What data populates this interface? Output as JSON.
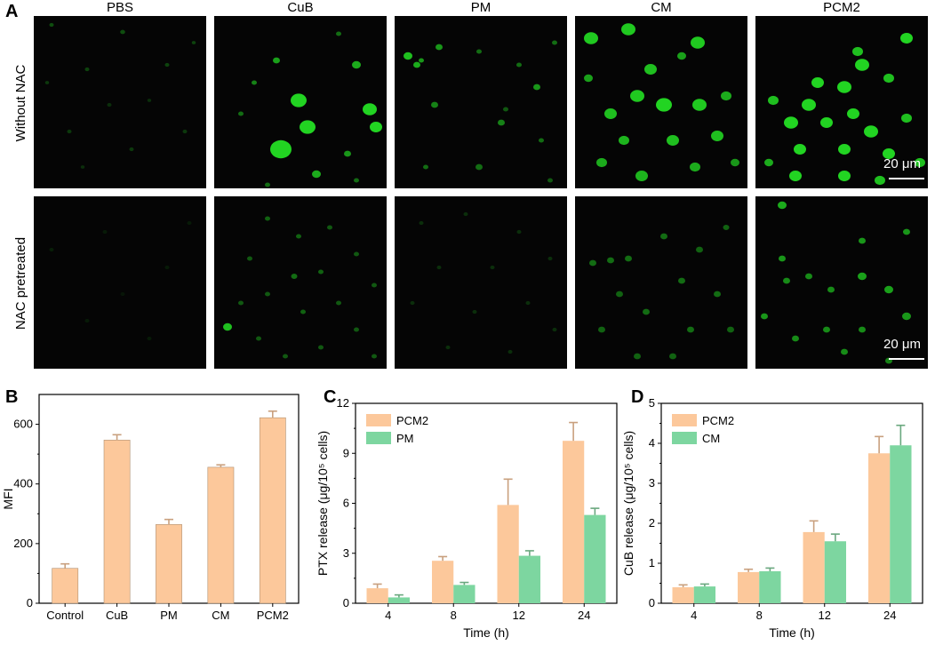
{
  "panel_a": {
    "letter": "A",
    "columns": [
      "PBS",
      "CuB",
      "PM",
      "CM",
      "PCM2"
    ],
    "rows": [
      "Without NAC",
      "NAC pretreated"
    ],
    "scale_bar": "20 μm",
    "cell_color": "#22d422",
    "cells": [
      [
        [
          [
            20,
            10,
            2.5,
            0.35
          ],
          [
            60,
            60,
            2.5,
            0.3
          ],
          [
            100,
            18,
            2.8,
            0.35
          ],
          [
            150,
            55,
            2.5,
            0.3
          ],
          [
            170,
            130,
            2.5,
            0.25
          ],
          [
            40,
            130,
            2.5,
            0.25
          ],
          [
            110,
            150,
            2.5,
            0.25
          ],
          [
            85,
            100,
            2.5,
            0.2
          ],
          [
            15,
            75,
            2.2,
            0.25
          ],
          [
            180,
            30,
            2.2,
            0.3
          ],
          [
            130,
            95,
            2.2,
            0.2
          ],
          [
            55,
            170,
            2.2,
            0.2
          ]
        ],
        [
          [
            70,
            50,
            4,
            0.75
          ],
          [
            95,
            95,
            9,
            1
          ],
          [
            105,
            125,
            9,
            1
          ],
          [
            160,
            55,
            5,
            0.8
          ],
          [
            175,
            105,
            8,
            1
          ],
          [
            182,
            125,
            7,
            1
          ],
          [
            75,
            150,
            12,
            1
          ],
          [
            115,
            178,
            5,
            0.8
          ],
          [
            150,
            155,
            4,
            0.7
          ],
          [
            45,
            75,
            3,
            0.6
          ],
          [
            30,
            110,
            3,
            0.5
          ],
          [
            140,
            20,
            3,
            0.5
          ],
          [
            60,
            190,
            3,
            0.5
          ],
          [
            160,
            185,
            3,
            0.5
          ]
        ],
        [
          [
            15,
            45,
            5,
            0.9
          ],
          [
            25,
            55,
            4,
            0.8
          ],
          [
            30,
            50,
            3,
            0.7
          ],
          [
            50,
            35,
            4,
            0.7
          ],
          [
            95,
            40,
            3,
            0.5
          ],
          [
            140,
            55,
            3,
            0.5
          ],
          [
            160,
            80,
            4,
            0.7
          ],
          [
            180,
            30,
            3,
            0.5
          ],
          [
            45,
            100,
            4,
            0.6
          ],
          [
            120,
            120,
            4,
            0.6
          ],
          [
            165,
            140,
            3,
            0.5
          ],
          [
            35,
            170,
            3,
            0.5
          ],
          [
            95,
            170,
            4,
            0.5
          ],
          [
            125,
            105,
            3,
            0.4
          ],
          [
            175,
            185,
            3,
            0.4
          ]
        ],
        [
          [
            18,
            25,
            8,
            0.95
          ],
          [
            60,
            15,
            8,
            0.95
          ],
          [
            138,
            30,
            8,
            0.95
          ],
          [
            85,
            60,
            7,
            0.9
          ],
          [
            70,
            90,
            8,
            0.95
          ],
          [
            40,
            110,
            7,
            0.9
          ],
          [
            100,
            100,
            9,
            1
          ],
          [
            140,
            100,
            8,
            0.95
          ],
          [
            170,
            90,
            6,
            0.8
          ],
          [
            55,
            140,
            6,
            0.85
          ],
          [
            110,
            140,
            7,
            0.9
          ],
          [
            160,
            135,
            7,
            0.9
          ],
          [
            30,
            165,
            6,
            0.8
          ],
          [
            75,
            180,
            7,
            0.85
          ],
          [
            135,
            170,
            6,
            0.8
          ],
          [
            180,
            165,
            5,
            0.7
          ],
          [
            15,
            70,
            5,
            0.75
          ],
          [
            120,
            45,
            5,
            0.75
          ]
        ],
        [
          [
            170,
            25,
            7,
            1
          ],
          [
            115,
            40,
            6,
            0.9
          ],
          [
            120,
            55,
            8,
            1
          ],
          [
            100,
            80,
            8,
            1
          ],
          [
            150,
            70,
            6,
            0.9
          ],
          [
            70,
            75,
            7,
            1
          ],
          [
            60,
            100,
            8,
            1
          ],
          [
            40,
            120,
            8,
            1
          ],
          [
            80,
            120,
            7,
            1
          ],
          [
            110,
            110,
            7,
            1
          ],
          [
            130,
            130,
            8,
            1
          ],
          [
            170,
            115,
            6,
            0.9
          ],
          [
            50,
            150,
            7,
            1
          ],
          [
            100,
            150,
            7,
            1
          ],
          [
            150,
            155,
            7,
            1
          ],
          [
            185,
            165,
            6,
            0.9
          ],
          [
            45,
            180,
            7,
            1
          ],
          [
            100,
            180,
            7,
            1
          ],
          [
            140,
            185,
            6,
            0.9
          ],
          [
            20,
            95,
            6,
            0.9
          ],
          [
            15,
            165,
            5,
            0.8
          ]
        ]
      ],
      [
        [
          [
            20,
            60,
            2.5,
            0.12
          ],
          [
            80,
            40,
            2.5,
            0.1
          ],
          [
            150,
            80,
            2.5,
            0.1
          ],
          [
            60,
            140,
            2.5,
            0.1
          ],
          [
            130,
            160,
            2.5,
            0.1
          ],
          [
            175,
            30,
            2.5,
            0.1
          ],
          [
            100,
            110,
            2.5,
            0.08
          ]
        ],
        [
          [
            60,
            25,
            3,
            0.45
          ],
          [
            95,
            45,
            3,
            0.45
          ],
          [
            130,
            35,
            3,
            0.4
          ],
          [
            160,
            65,
            3,
            0.4
          ],
          [
            40,
            70,
            3,
            0.4
          ],
          [
            90,
            90,
            3.5,
            0.5
          ],
          [
            120,
            85,
            3,
            0.45
          ],
          [
            180,
            100,
            3,
            0.4
          ],
          [
            30,
            120,
            3,
            0.4
          ],
          [
            60,
            110,
            3,
            0.4
          ],
          [
            140,
            120,
            3,
            0.4
          ],
          [
            100,
            130,
            3,
            0.45
          ],
          [
            50,
            160,
            3,
            0.4
          ],
          [
            160,
            150,
            3,
            0.4
          ],
          [
            15,
            147,
            5,
            0.9
          ],
          [
            120,
            170,
            3,
            0.4
          ],
          [
            80,
            180,
            3,
            0.4
          ],
          [
            180,
            180,
            3,
            0.4
          ]
        ],
        [
          [
            30,
            30,
            2.5,
            0.2
          ],
          [
            80,
            20,
            2.5,
            0.2
          ],
          [
            140,
            40,
            2.5,
            0.2
          ],
          [
            175,
            70,
            2.5,
            0.2
          ],
          [
            50,
            80,
            2.5,
            0.2
          ],
          [
            110,
            80,
            2.5,
            0.2
          ],
          [
            20,
            120,
            2.5,
            0.2
          ],
          [
            90,
            130,
            2.5,
            0.2
          ],
          [
            150,
            120,
            2.5,
            0.2
          ],
          [
            60,
            170,
            2.5,
            0.2
          ],
          [
            130,
            175,
            2.5,
            0.2
          ],
          [
            180,
            150,
            2.5,
            0.2
          ]
        ],
        [
          [
            20,
            75,
            4,
            0.5
          ],
          [
            40,
            72,
            4,
            0.5
          ],
          [
            60,
            70,
            4,
            0.5
          ],
          [
            100,
            45,
            4,
            0.5
          ],
          [
            140,
            60,
            4,
            0.45
          ],
          [
            170,
            35,
            3.5,
            0.45
          ],
          [
            120,
            95,
            4,
            0.5
          ],
          [
            160,
            110,
            4,
            0.5
          ],
          [
            50,
            110,
            4,
            0.45
          ],
          [
            80,
            130,
            4,
            0.5
          ],
          [
            30,
            150,
            4,
            0.45
          ],
          [
            130,
            150,
            4,
            0.5
          ],
          [
            175,
            150,
            4,
            0.45
          ],
          [
            70,
            180,
            4,
            0.45
          ],
          [
            110,
            180,
            4,
            0.45
          ]
        ],
        [
          [
            30,
            10,
            5,
            0.8
          ],
          [
            120,
            50,
            4,
            0.7
          ],
          [
            170,
            40,
            4,
            0.7
          ],
          [
            120,
            90,
            5,
            0.75
          ],
          [
            30,
            70,
            4,
            0.7
          ],
          [
            60,
            90,
            4,
            0.65
          ],
          [
            85,
            105,
            4,
            0.65
          ],
          [
            35,
            95,
            4,
            0.65
          ],
          [
            150,
            105,
            5,
            0.75
          ],
          [
            80,
            150,
            4,
            0.65
          ],
          [
            170,
            135,
            5,
            0.7
          ],
          [
            120,
            150,
            4,
            0.65
          ],
          [
            10,
            135,
            4,
            0.7
          ],
          [
            45,
            160,
            4,
            0.65
          ],
          [
            100,
            175,
            4,
            0.65
          ],
          [
            150,
            185,
            4,
            0.6
          ]
        ]
      ]
    ]
  },
  "panel_b": {
    "letter": "B",
    "chart_data": {
      "type": "bar",
      "categories": [
        "Control",
        "CuB",
        "PM",
        "CM",
        "PCM2"
      ],
      "values": [
        117,
        547,
        264,
        456,
        622
      ],
      "errors": [
        15,
        18,
        17,
        8,
        22
      ],
      "ylabel": "MFI",
      "xlabel": "",
      "ylim": [
        0,
        700
      ],
      "yticks": [
        "0",
        "200",
        "400",
        "600"
      ],
      "color": "#fcc89b",
      "edge_color": "#b09070"
    }
  },
  "panel_c": {
    "letter": "C",
    "chart_data": {
      "type": "bar",
      "categories": [
        "4",
        "8",
        "12",
        "24"
      ],
      "series": [
        {
          "name": "PCM2",
          "values": [
            0.9,
            2.55,
            5.9,
            9.75
          ],
          "errors": [
            0.25,
            0.25,
            1.55,
            1.1
          ],
          "color": "#fcc89b"
        },
        {
          "name": "PM",
          "values": [
            0.35,
            1.1,
            2.85,
            5.3
          ],
          "errors": [
            0.15,
            0.15,
            0.3,
            0.4
          ],
          "color": "#7dd6a0"
        }
      ],
      "xlabel": "Time (h)",
      "ylabel": "PTX release (μg/10⁵ cells)",
      "ylim": [
        0,
        12
      ],
      "yticks": [
        "0",
        "3",
        "6",
        "9",
        "12"
      ]
    }
  },
  "panel_d": {
    "letter": "D",
    "chart_data": {
      "type": "bar",
      "categories": [
        "4",
        "8",
        "12",
        "24"
      ],
      "series": [
        {
          "name": "PCM2",
          "values": [
            0.4,
            0.78,
            1.78,
            3.75
          ],
          "errors": [
            0.06,
            0.07,
            0.28,
            0.42
          ],
          "color": "#fcc89b"
        },
        {
          "name": "CM",
          "values": [
            0.42,
            0.8,
            1.55,
            3.95
          ],
          "errors": [
            0.06,
            0.08,
            0.18,
            0.5
          ],
          "color": "#7dd6a0"
        }
      ],
      "xlabel": "Time (h)",
      "ylabel": "CuB release (μg/10⁵ cells)",
      "ylim": [
        0,
        5
      ],
      "yticks": [
        "0",
        "1",
        "2",
        "3",
        "4",
        "5"
      ]
    }
  }
}
